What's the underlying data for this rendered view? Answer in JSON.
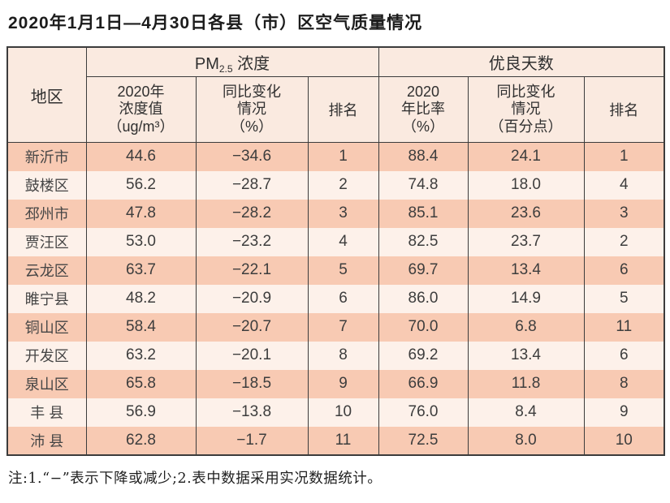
{
  "title": "2020年1月1日—4月30日各县（市）区空气质量情况",
  "table": {
    "header": {
      "region": "地区",
      "pm_group": {
        "prefix": "PM",
        "sub": "2.5",
        "suffix": " 浓度"
      },
      "days_group": "优良天数",
      "pm_value": "2020年\n浓度值\n（ug/m³）",
      "pm_change": "同比变化\n情况\n（%）",
      "pm_rank": "排名",
      "days_ratio": "2020\n年比率\n（%）",
      "days_change": "同比变化\n情况\n（百分点）",
      "days_rank": "排名"
    },
    "rows": [
      {
        "region": "新沂市",
        "pm": "44.6",
        "pm_change": "−34.6",
        "pm_rank": "1",
        "days": "88.4",
        "days_change": "24.1",
        "days_rank": "1"
      },
      {
        "region": "鼓楼区",
        "pm": "56.2",
        "pm_change": "−28.7",
        "pm_rank": "2",
        "days": "74.8",
        "days_change": "18.0",
        "days_rank": "4"
      },
      {
        "region": "邳州市",
        "pm": "47.8",
        "pm_change": "−28.2",
        "pm_rank": "3",
        "days": "85.1",
        "days_change": "23.6",
        "days_rank": "3"
      },
      {
        "region": "贾汪区",
        "pm": "53.0",
        "pm_change": "−23.2",
        "pm_rank": "4",
        "days": "82.5",
        "days_change": "23.7",
        "days_rank": "2"
      },
      {
        "region": "云龙区",
        "pm": "63.7",
        "pm_change": "−22.1",
        "pm_rank": "5",
        "days": "69.7",
        "days_change": "13.4",
        "days_rank": "6"
      },
      {
        "region": "睢宁县",
        "pm": "48.2",
        "pm_change": "−20.9",
        "pm_rank": "6",
        "days": "86.0",
        "days_change": "14.9",
        "days_rank": "5"
      },
      {
        "region": "铜山区",
        "pm": "58.4",
        "pm_change": "−20.7",
        "pm_rank": "7",
        "days": "70.0",
        "days_change": "6.8",
        "days_rank": "11"
      },
      {
        "region": "开发区",
        "pm": "63.2",
        "pm_change": "−20.1",
        "pm_rank": "8",
        "days": "69.2",
        "days_change": "13.4",
        "days_rank": "6"
      },
      {
        "region": "泉山区",
        "pm": "65.8",
        "pm_change": "−18.5",
        "pm_rank": "9",
        "days": "66.9",
        "days_change": "11.8",
        "days_rank": "8"
      },
      {
        "region": "丰 县",
        "pm": "56.9",
        "pm_change": "−13.8",
        "pm_rank": "10",
        "days": "76.0",
        "days_change": "8.4",
        "days_rank": "9"
      },
      {
        "region": "沛 县",
        "pm": "62.8",
        "pm_change": "−1.7",
        "pm_rank": "11",
        "days": "72.5",
        "days_change": "8.0",
        "days_rank": "10"
      }
    ]
  },
  "footnote": "注:1.“−”表示下降或减少;2.表中数据采用实况数据统计。",
  "colors": {
    "row_odd": "#f8cab3",
    "row_even": "#fdf1ea",
    "header_bg": "#faeae0",
    "border": "#3c3c3c"
  }
}
